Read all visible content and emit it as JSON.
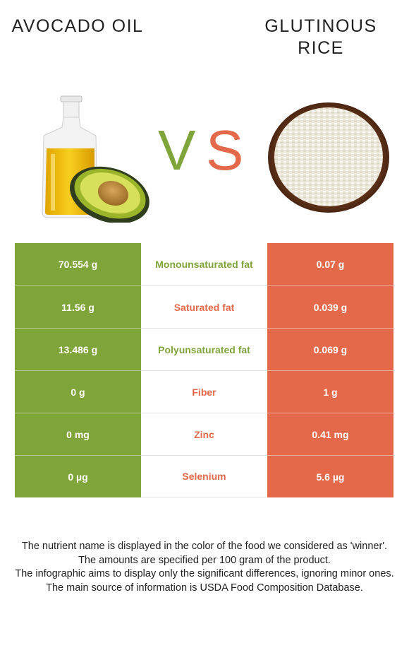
{
  "colors": {
    "left": "#7fa43a",
    "right": "#e3694a",
    "text": "#222222"
  },
  "food_left": {
    "title": "Avocado oil",
    "image": "avocado-oil-bottle-icon"
  },
  "food_right": {
    "title": "Glutinous rice",
    "image": "rice-bowl-icon"
  },
  "vs": {
    "v": "V",
    "s": "S"
  },
  "nutrients": [
    {
      "name": "Monounsaturated fat",
      "left": "70.554 g",
      "right": "0.07 g",
      "winner": "left"
    },
    {
      "name": "Saturated fat",
      "left": "11.56 g",
      "right": "0.039 g",
      "winner": "right"
    },
    {
      "name": "Polyunsaturated fat",
      "left": "13.486 g",
      "right": "0.069 g",
      "winner": "left"
    },
    {
      "name": "Fiber",
      "left": "0 g",
      "right": "1 g",
      "winner": "right"
    },
    {
      "name": "Zinc",
      "left": "0 mg",
      "right": "0.41 mg",
      "winner": "right"
    },
    {
      "name": "Selenium",
      "left": "0 µg",
      "right": "5.6 µg",
      "winner": "right"
    }
  ],
  "footnotes": [
    "The nutrient name is displayed in the color of the food we considered as 'winner'.",
    "The amounts are specified per 100 gram of the product.",
    "The infographic aims to display only the significant differences, ignoring minor ones.",
    "The main source of information is USDA Food Composition Database."
  ]
}
